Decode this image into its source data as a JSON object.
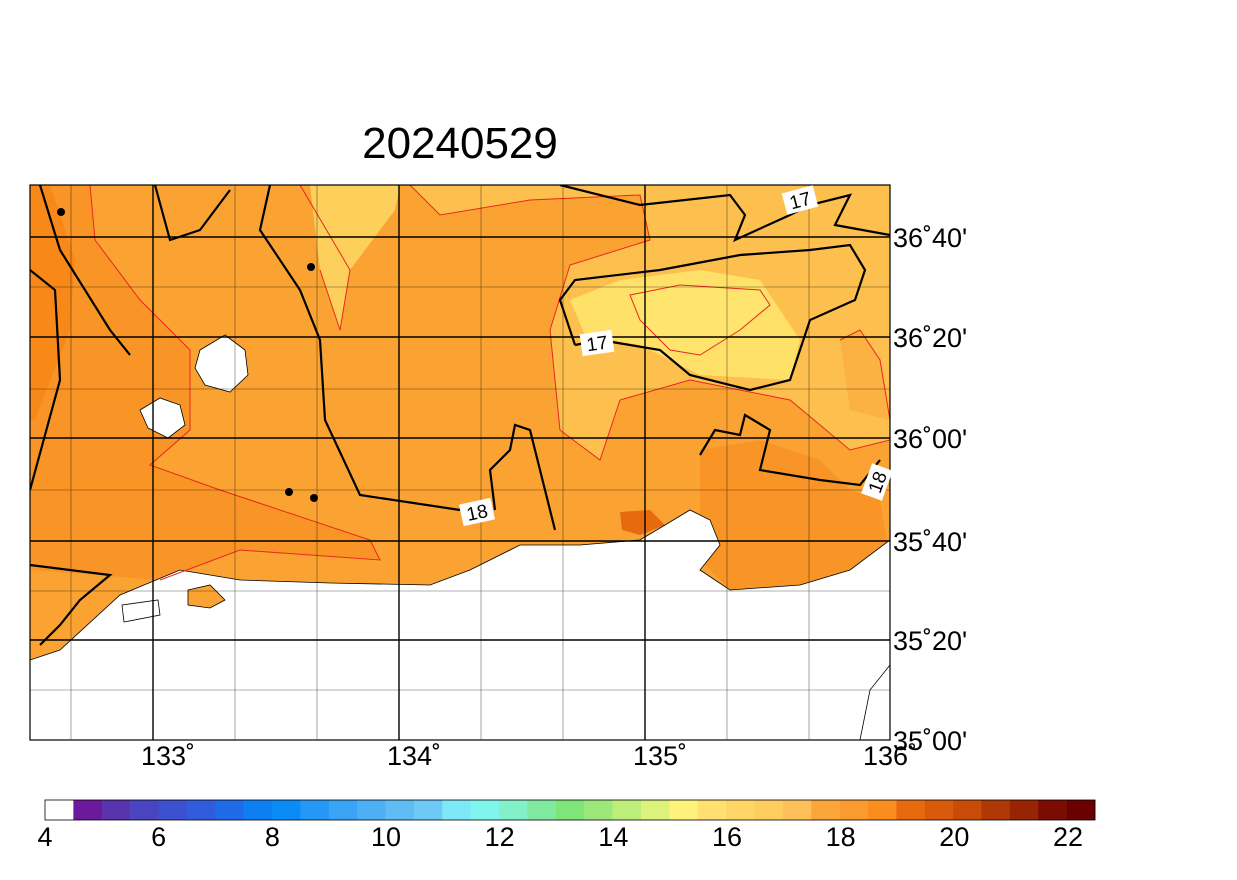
{
  "title": "20240529",
  "map": {
    "x_labels": [
      "133˚",
      "134˚",
      "135˚",
      "136˚"
    ],
    "y_labels": [
      "36˚40'",
      "36˚20'",
      "36˚00'",
      "35˚40'",
      "35˚20'",
      "35˚00'"
    ],
    "contour_labels": [
      "17",
      "17",
      "18",
      "18"
    ]
  },
  "colorbar": {
    "labels": [
      "4",
      "6",
      "8",
      "10",
      "12",
      "14",
      "16",
      "18",
      "20",
      "22"
    ],
    "colors": [
      "#ffffff",
      "#6a1a9a",
      "#5a34ad",
      "#4b44c0",
      "#3d50cf",
      "#2f5cdc",
      "#1f6ae6",
      "#0d7ff2",
      "#0a8cf8",
      "#2598f5",
      "#3aa3f5",
      "#4eaff5",
      "#5fbcf5",
      "#6fc9f7",
      "#7ee8f7",
      "#80f5ee",
      "#82f0c8",
      "#80eaa0",
      "#7fe47a",
      "#9de87a",
      "#bdee7a",
      "#dcf27a",
      "#fff27a",
      "#ffe070",
      "#ffd666",
      "#ffcc60",
      "#ffc05a",
      "#fba63a",
      "#fb9a2e",
      "#fb8c1e",
      "#e86a0e",
      "#d85a0a",
      "#c84c08",
      "#b03806",
      "#982404",
      "#7a0c02",
      "#6a0000"
    ]
  }
}
